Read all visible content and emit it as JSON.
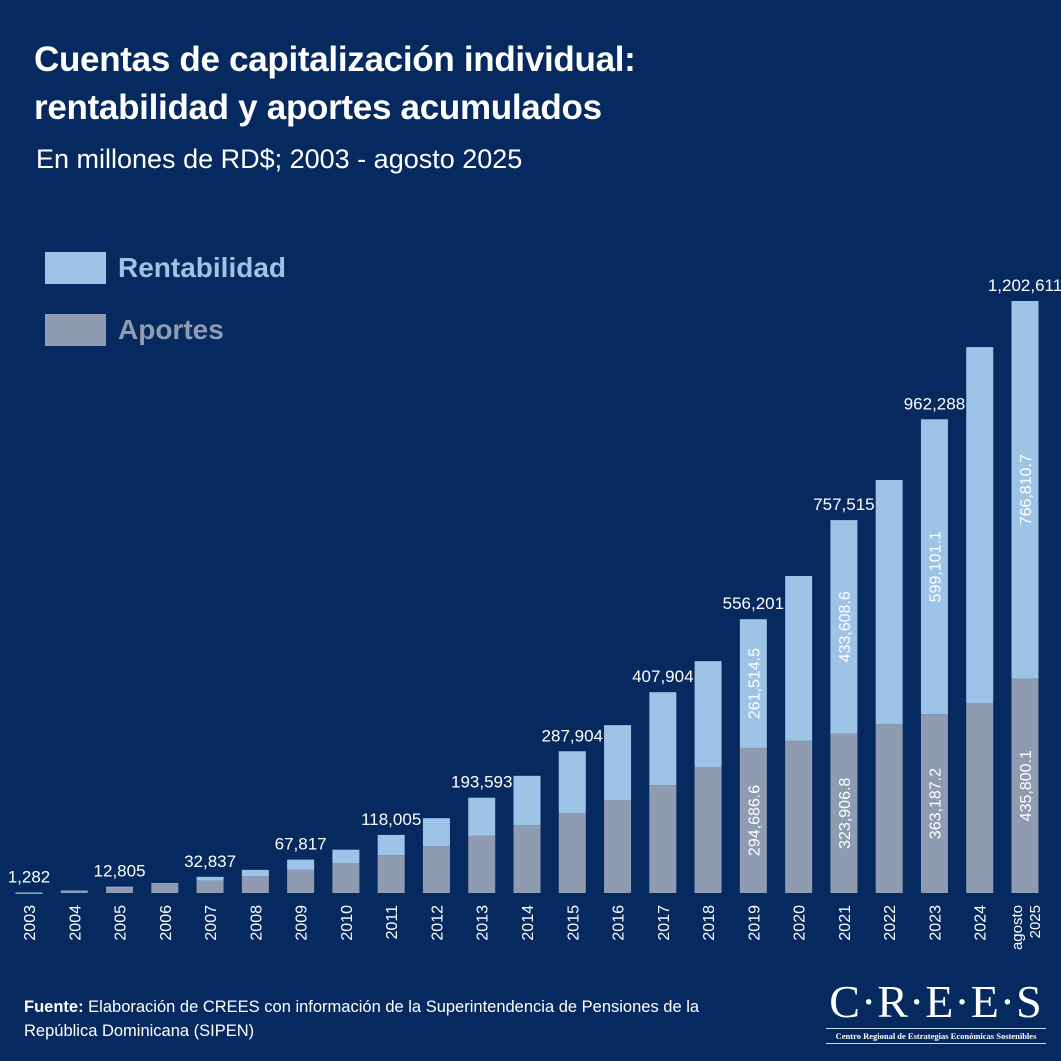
{
  "header": {
    "title_line1": "Cuentas de capitalización individual:",
    "title_line2": "rentabilidad y aportes acumulados",
    "subtitle": "En millones de RD$; 2003 - agosto 2025"
  },
  "colors": {
    "background": "#062a5f",
    "rentabilidad": "#9dc3e6",
    "aportes": "#8f9bb0"
  },
  "chart_data": {
    "type": "bar",
    "stacked": true,
    "title": "Cuentas de capitalización individual: rentabilidad y aportes acumulados",
    "subtitle": "En millones de RD$; 2003 - agosto 2025",
    "legend_position": "top-left",
    "grid": false,
    "categories": [
      "2003",
      "2004",
      "2005",
      "2006",
      "2007",
      "2008",
      "2009",
      "2010",
      "2011",
      "2012",
      "2013",
      "2014",
      "2015",
      "2016",
      "2017",
      "2018",
      "2019",
      "2020",
      "2021",
      "2022",
      "2023",
      "2024",
      "agosto 2025"
    ],
    "series": [
      {
        "name": "Aportes",
        "values": [
          1000,
          4000,
          11000,
          18000,
          25000,
          34000,
          47000,
          61000,
          77000,
          95000,
          116000,
          138000,
          162000,
          189000,
          219000,
          256000,
          294686.6,
          309000,
          323906.8,
          343000,
          363187.2,
          386000,
          435800.1
        ]
      },
      {
        "name": "Rentabilidad",
        "values": [
          282,
          1000,
          1805,
          2000,
          7837,
          13000,
          20817,
          27000,
          41005,
          57000,
          77593,
          100000,
          125904,
          152000,
          188904,
          215000,
          261514.5,
          335000,
          433608.6,
          496000,
          599101.1,
          723000,
          766810.7
        ]
      }
    ],
    "total_labels": {
      "2003": "1,282",
      "2005": "12,805",
      "2007": "32,837",
      "2009": "67,817",
      "2011": "118,005",
      "2013": "193,593",
      "2015": "287,904",
      "2017": "407,904",
      "2019": "556,201",
      "2021": "757,515",
      "2023": "962,288",
      "agosto 2025": "1,202,611"
    },
    "segment_labels": {
      "2019": {
        "Aportes": "294,686.6",
        "Rentabilidad": "261,514.5"
      },
      "2021": {
        "Aportes": "323,906.8",
        "Rentabilidad": "433,608.6"
      },
      "2023": {
        "Aportes": "363,187.2",
        "Rentabilidad": "599,101.1"
      },
      "agosto 2025": {
        "Aportes": "435,800.1",
        "Rentabilidad": "766,810.7"
      }
    },
    "ylim": [
      0,
      1202611
    ]
  },
  "legend": {
    "rentabilidad": "Rentabilidad",
    "aportes": "Aportes"
  },
  "footer": {
    "source_label": "Fuente:",
    "source_text": " Elaboración de CREES con información de la Superintendencia de Pensiones de la República Dominicana (SIPEN)"
  },
  "logo": {
    "mark": "C·R·E·E·S",
    "tagline": "Centro Regional de Estrategias Económicas Sostenibles"
  }
}
